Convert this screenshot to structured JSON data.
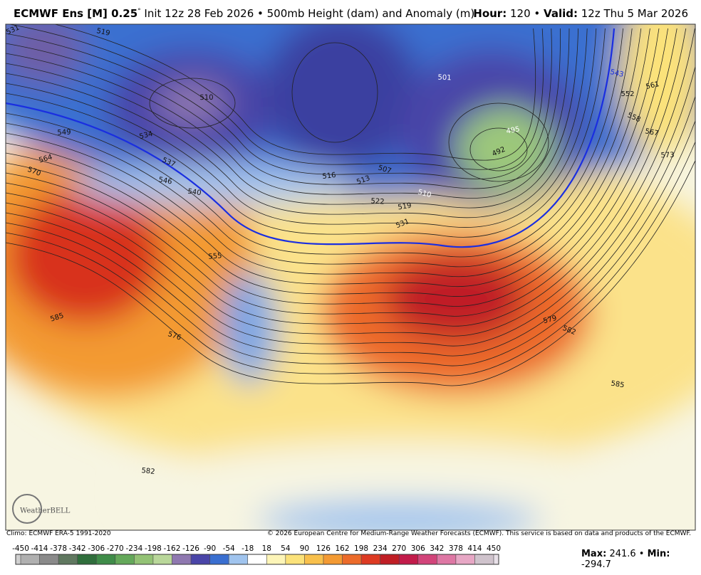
{
  "header": {
    "model": "ECMWF Ens [M] 0.25",
    "degree": "°",
    "info": "Init 12z 28 Feb 2026 • 500mb Height (dam) and Anomaly (m)",
    "hour_label": "Hour:",
    "hour": 120,
    "separator": "•",
    "valid_label": "Valid:",
    "valid": "12z Thu 5 Mar 2026"
  },
  "map": {
    "contour_labels": [
      "531",
      "519",
      "510",
      "534",
      "537",
      "546",
      "549",
      "564",
      "570",
      "540",
      "555",
      "585",
      "576",
      "582",
      "516",
      "513",
      "507",
      "522",
      "519",
      "531",
      "510",
      "501",
      "495",
      "492",
      "543",
      "552",
      "561",
      "558",
      "567",
      "573",
      "579",
      "582",
      "585"
    ],
    "logo": "WeatherBELL"
  },
  "credits": {
    "climo": "Climo: ECMWF ERA-5 1991-2020",
    "copyright": "© 2026 European Centre for Medium-Range Weather Forecasts (ECMWF). This service is based on data and products of the ECMWF."
  },
  "colorbar": {
    "ticks": [
      -450,
      -414,
      -378,
      -342,
      -306,
      -270,
      -234,
      -198,
      -162,
      -126,
      -90,
      -54,
      -18,
      18,
      54,
      90,
      126,
      162,
      198,
      234,
      270,
      306,
      342,
      378,
      414,
      450
    ],
    "colors": [
      "#b0b0b0",
      "#8a8a8a",
      "#607860",
      "#2f6e3c",
      "#3f8c49",
      "#64a85a",
      "#93c275",
      "#b9d79a",
      "#8f78b0",
      "#4a45a8",
      "#3a6fd0",
      "#a0c4ee",
      "#ffffff",
      "#fdf5b8",
      "#fbe27a",
      "#f8c04c",
      "#f39a33",
      "#ec6b2a",
      "#dd3a22",
      "#c01e25",
      "#c21b4a",
      "#d2447a",
      "#de77a4",
      "#e7a7c5",
      "#cfc3cc"
    ]
  },
  "stats": {
    "max_label": "Max:",
    "max": 241.6,
    "separator": "•",
    "min_label": "Min:",
    "min": -294.7
  }
}
